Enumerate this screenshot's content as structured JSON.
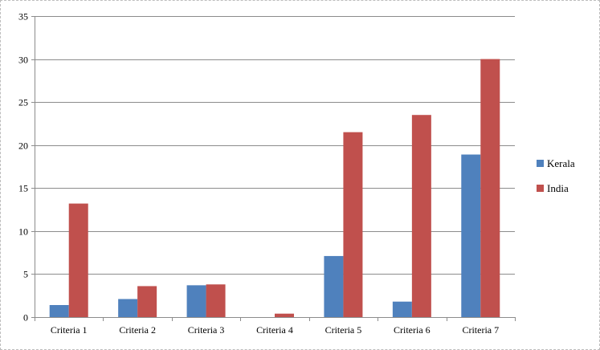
{
  "chart_data": {
    "type": "bar",
    "categories": [
      "Criteria 1",
      "Criteria 2",
      "Criteria 3",
      "Criteria 4",
      "Criteria 5",
      "Criteria 6",
      "Criteria 7"
    ],
    "series": [
      {
        "name": "Kerala",
        "color": "#4F81BD",
        "values": [
          1.4,
          2.1,
          3.7,
          0,
          7.1,
          1.8,
          18.9
        ]
      },
      {
        "name": "India",
        "color": "#C0504D",
        "values": [
          13.2,
          3.6,
          3.8,
          0.4,
          21.5,
          23.5,
          30
        ]
      }
    ],
    "title": "",
    "xlabel": "",
    "ylabel": "",
    "ylim": [
      0,
      35
    ],
    "yticks": [
      0,
      5,
      10,
      15,
      20,
      25,
      30,
      35
    ],
    "grid": true,
    "legend": "right"
  }
}
